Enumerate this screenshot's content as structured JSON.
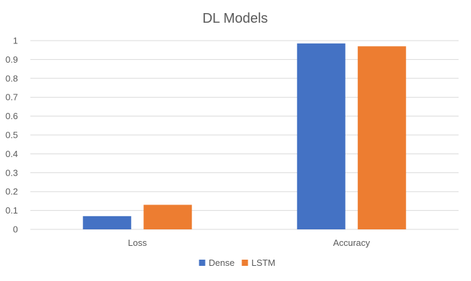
{
  "chart_data": {
    "type": "bar",
    "title": "DL Models",
    "categories": [
      "Loss",
      "Accuracy"
    ],
    "series": [
      {
        "name": "Dense",
        "values": [
          0.07,
          0.985
        ],
        "color": "#4472C4"
      },
      {
        "name": "LSTM",
        "values": [
          0.13,
          0.97
        ],
        "color": "#ED7D31"
      }
    ],
    "ylim": [
      0,
      1
    ],
    "yticks": [
      "0",
      "0.1",
      "0.2",
      "0.3",
      "0.4",
      "0.5",
      "0.6",
      "0.7",
      "0.8",
      "0.9",
      "1"
    ],
    "grid": true,
    "legend_position": "bottom",
    "xlabel": "",
    "ylabel": ""
  }
}
